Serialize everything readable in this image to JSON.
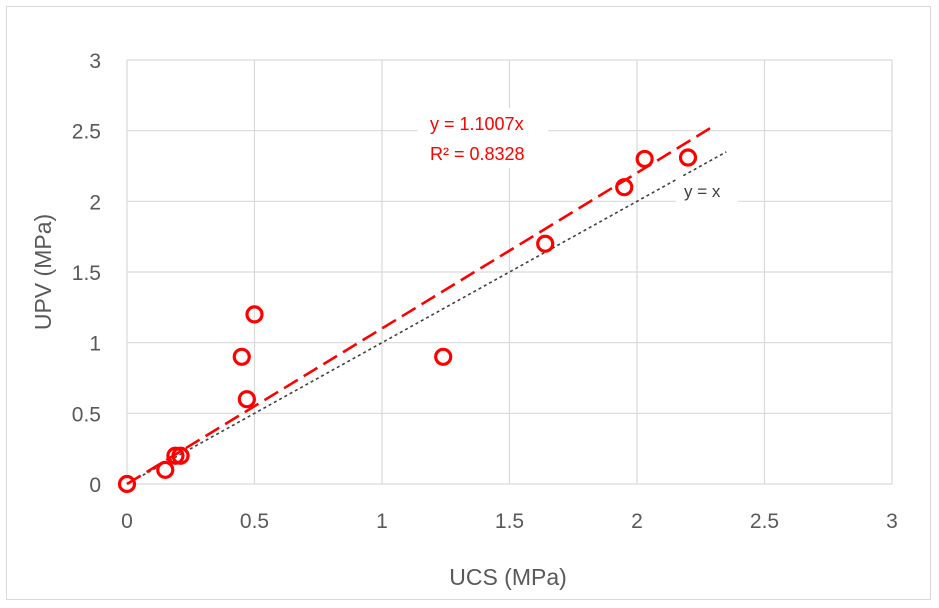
{
  "chart_data": {
    "type": "scatter",
    "xlabel": "UCS (MPa)",
    "ylabel": "UPV (MPa)",
    "xlim": [
      0,
      3
    ],
    "ylim": [
      0,
      3
    ],
    "x_ticks": [
      "0",
      "0.5",
      "1",
      "1.5",
      "2",
      "2.5",
      "3"
    ],
    "y_ticks": [
      "0",
      "0.5",
      "1",
      "1.5",
      "2",
      "2.5",
      "3"
    ],
    "grid": true,
    "series": [
      {
        "marker": "open-circle",
        "color": "#ff0000",
        "points": [
          {
            "x": 0.0,
            "y": 0.0
          },
          {
            "x": 0.15,
            "y": 0.1
          },
          {
            "x": 0.19,
            "y": 0.2
          },
          {
            "x": 0.21,
            "y": 0.2
          },
          {
            "x": 0.45,
            "y": 0.9
          },
          {
            "x": 0.47,
            "y": 0.6
          },
          {
            "x": 0.5,
            "y": 1.2
          },
          {
            "x": 1.24,
            "y": 0.9
          },
          {
            "x": 1.64,
            "y": 1.7
          },
          {
            "x": 1.95,
            "y": 2.1
          },
          {
            "x": 2.03,
            "y": 2.3
          },
          {
            "x": 2.2,
            "y": 2.31
          }
        ]
      }
    ],
    "trendline": {
      "slope": 1.1007,
      "x_range": [
        0,
        2.3
      ],
      "color": "#ff0000",
      "style": "dashed",
      "equation_label": "y = 1.1007x",
      "r2_label": "R² = 0.8328"
    },
    "reference_line": {
      "slope": 1,
      "x_range": [
        0,
        2.35
      ],
      "color": "#404040",
      "style": "dotted",
      "label": "y = x"
    }
  }
}
